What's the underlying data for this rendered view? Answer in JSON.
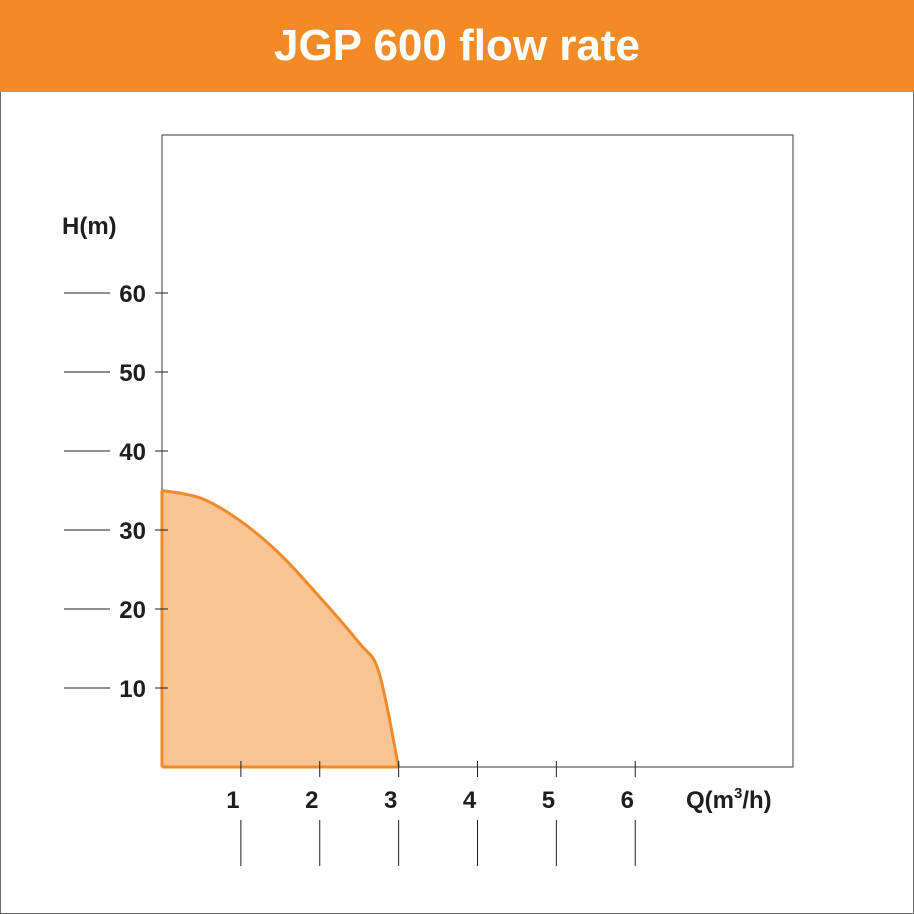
{
  "header": {
    "title": "JGP 600 flow rate"
  },
  "colors": {
    "accent": "#f28a26",
    "curve": "#ef8a2a",
    "fill": "#f9c493"
  },
  "chart_data": {
    "type": "area",
    "title": "JGP 600 flow rate",
    "xlabel": "Q(m³/h)",
    "ylabel": "H(m)",
    "x": [
      0,
      0.5,
      1,
      1.5,
      2,
      2.5,
      2.75,
      3
    ],
    "y": [
      35,
      34.0,
      31.1,
      26.9,
      21.5,
      15.7,
      12.0,
      0
    ],
    "xticks": [
      "1",
      "2",
      "3",
      "4",
      "5",
      "6"
    ],
    "yticks": [
      "10",
      "20",
      "30",
      "40",
      "50",
      "60"
    ],
    "xlim": [
      0,
      8
    ],
    "ylim": [
      0,
      80
    ],
    "grid": false
  }
}
